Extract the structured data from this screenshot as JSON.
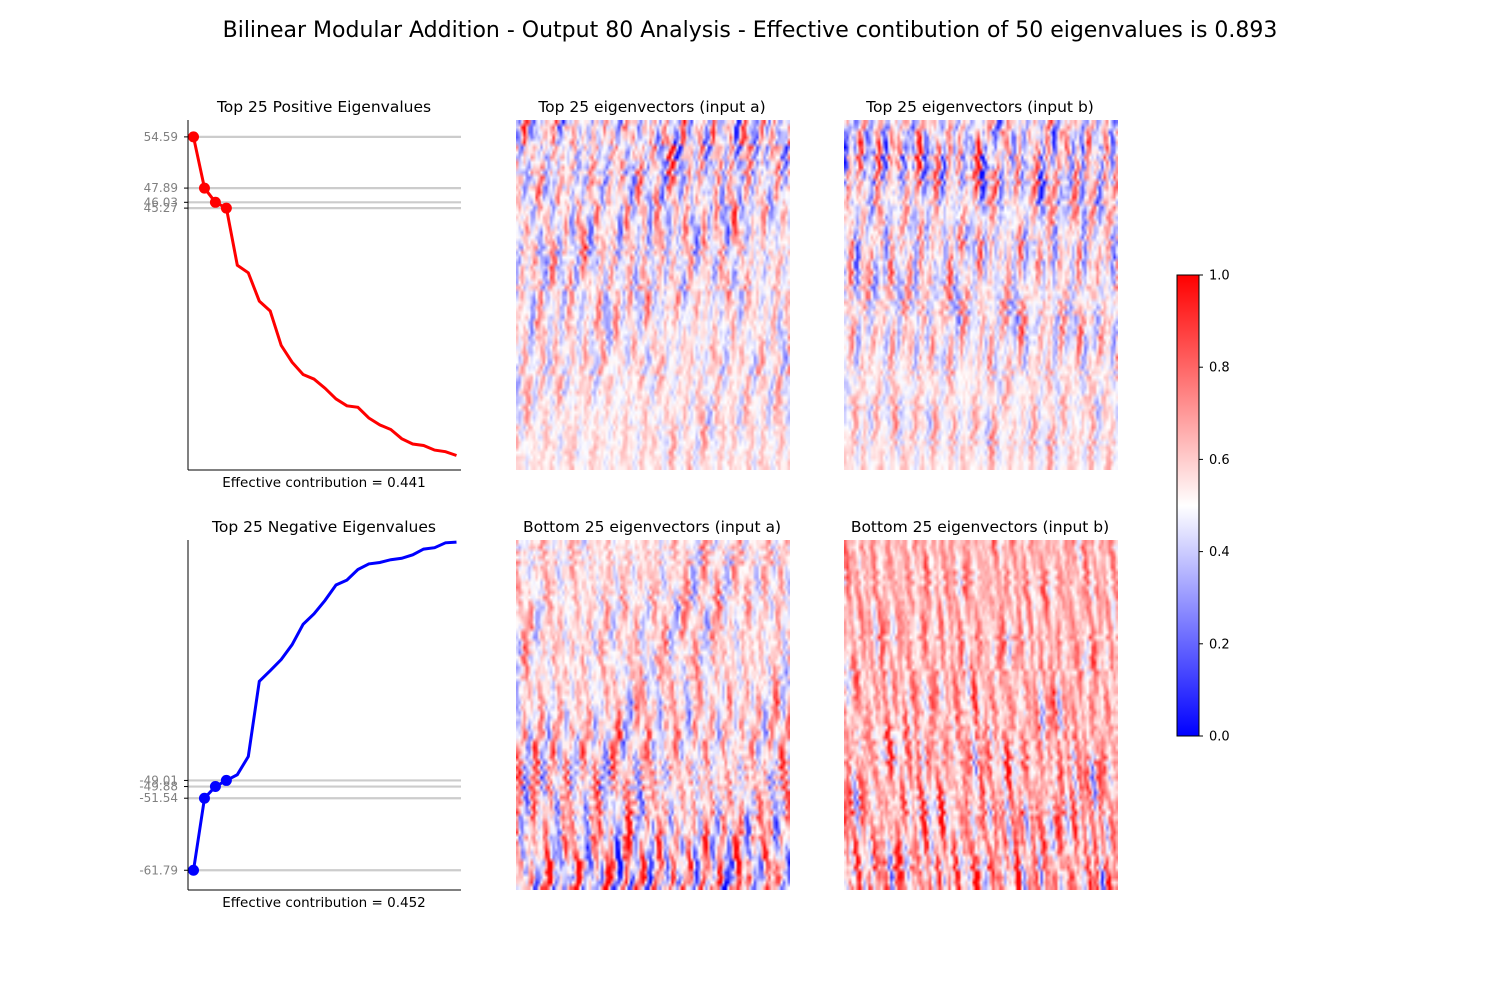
{
  "figure": {
    "suptitle": "Bilinear Modular Addition - Output 80 Analysis - Effective contibution of 50 eigenvalues is 0.893"
  },
  "chart_data": [
    {
      "type": "line",
      "title": "Top 25 Positive Eigenvalues",
      "xlabel": "Effective contribution = 0.441",
      "ylabel": "",
      "color": "#ff0000",
      "x": [
        1,
        2,
        3,
        4,
        5,
        6,
        7,
        8,
        9,
        10,
        11,
        12,
        13,
        14,
        15,
        16,
        17,
        18,
        19,
        20,
        21,
        22,
        23,
        24,
        25
      ],
      "values": [
        54.59,
        47.89,
        46.03,
        45.27,
        37.8,
        36.8,
        33.1,
        31.8,
        27.3,
        25.1,
        23.5,
        22.9,
        21.7,
        20.3,
        19.4,
        19.2,
        17.8,
        16.9,
        16.3,
        15.1,
        14.4,
        14.2,
        13.6,
        13.4,
        12.9
      ],
      "highlight_count": 4,
      "ytick_labels": [
        "54.59",
        "47.89",
        "46.03",
        "45.27"
      ],
      "ylim": [
        11.0,
        56.8
      ],
      "grid": false,
      "reference_lines": [
        54.59,
        47.89,
        46.03,
        45.27
      ]
    },
    {
      "type": "heatmap",
      "title": "Top 25 eigenvectors (input a)",
      "colormap": "bwr",
      "seed": 11,
      "pattern": "top"
    },
    {
      "type": "heatmap",
      "title": "Top 25 eigenvectors (input b)",
      "colormap": "bwr",
      "seed": 23,
      "pattern": "top"
    },
    {
      "type": "line",
      "title": "Top 25 Negative Eigenvalues",
      "xlabel": "Effective contribution = 0.452",
      "ylabel": "",
      "color": "#0000ff",
      "x": [
        1,
        2,
        3,
        4,
        5,
        6,
        7,
        8,
        9,
        10,
        11,
        12,
        13,
        14,
        15,
        16,
        17,
        18,
        19,
        20,
        21,
        22,
        23,
        24,
        25
      ],
      "values": [
        -61.79,
        -51.54,
        -49.88,
        -49.01,
        -48.2,
        -45.6,
        -34.9,
        -33.4,
        -31.8,
        -29.7,
        -26.8,
        -25.3,
        -23.4,
        -21.2,
        -20.5,
        -19.0,
        -18.2,
        -18.0,
        -17.6,
        -17.4,
        -16.9,
        -16.1,
        -15.9,
        -15.2,
        -15.1
      ],
      "highlight_count": 4,
      "ytick_labels": [
        "-49.01",
        "-49.88",
        "-51.54",
        "-61.79"
      ],
      "ylim": [
        -64.6,
        -14.8
      ],
      "grid": false,
      "reference_lines": [
        -49.01,
        -49.88,
        -51.54,
        -61.79
      ]
    },
    {
      "type": "heatmap",
      "title": "Bottom 25 eigenvectors (input a)",
      "colormap": "bwr",
      "seed": 37,
      "pattern": "bottom"
    },
    {
      "type": "heatmap",
      "title": "Bottom 25 eigenvectors (input b)",
      "colormap": "bwr",
      "seed": 53,
      "pattern": "bottomRed"
    }
  ],
  "colorbar": {
    "colormap": "bwr",
    "range": [
      0.0,
      1.0
    ],
    "ticks": [
      "0.0",
      "0.2",
      "0.4",
      "0.6",
      "0.8",
      "1.0"
    ]
  }
}
